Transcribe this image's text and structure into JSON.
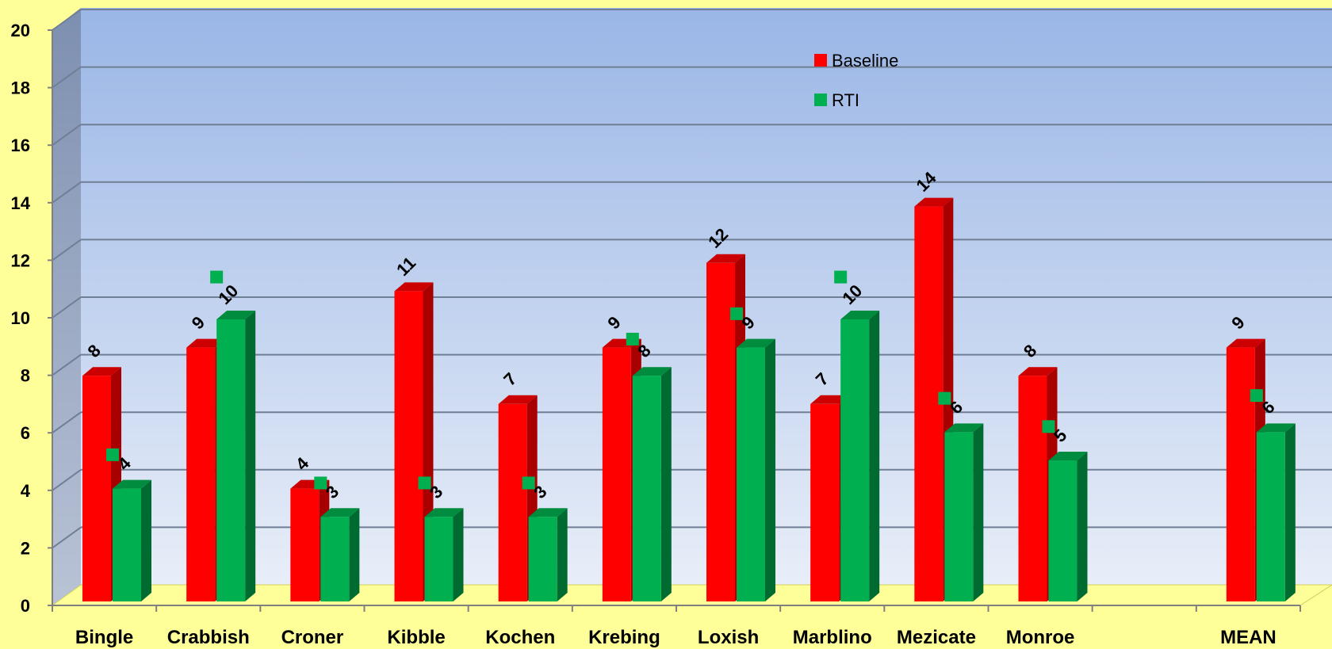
{
  "chart_data": {
    "type": "bar",
    "categories": [
      "Bingle",
      "Crabbish",
      "Croner",
      "Kibble",
      "Kochen",
      "Krebing",
      "Loxish",
      "Marblino",
      "Mezicate",
      "Monroe",
      "",
      "MEAN"
    ],
    "series": [
      {
        "name": "Baseline",
        "values": [
          8,
          9,
          4,
          11,
          7,
          9,
          12,
          7,
          14,
          8,
          null,
          9
        ],
        "color": "#ff0000",
        "side_color": "#a80000",
        "top_color": "#cc0000"
      },
      {
        "name": "RTI",
        "values": [
          4,
          10,
          3,
          3,
          3,
          8,
          9,
          10,
          6,
          5,
          null,
          6
        ],
        "color": "#00b050",
        "side_color": "#006b30",
        "top_color": "#008c3e"
      }
    ],
    "data_labels": {
      "Baseline": [
        "8",
        "9",
        "4",
        "11",
        "7",
        "9",
        "12",
        "7",
        "14",
        "8",
        "",
        "9"
      ],
      "RTI": [
        "4",
        "10",
        "3",
        "3",
        "3",
        "8",
        "9",
        "10",
        "6",
        "5",
        "",
        "6"
      ]
    },
    "markers": {
      "series": "RTI",
      "color": "#00b050",
      "values": [
        5.2,
        11.5,
        4.2,
        4.2,
        4.2,
        9.3,
        10.2,
        11.5,
        7.2,
        6.2,
        null,
        7.3
      ]
    },
    "ylim": [
      0,
      20
    ],
    "yticks": [
      "0",
      "2",
      "4",
      "6",
      "8",
      "10",
      "12",
      "14",
      "16",
      "18",
      "20"
    ],
    "grid": true,
    "legend": {
      "placement": "top-center",
      "entries": [
        "Baseline",
        "RTI"
      ]
    },
    "title": "",
    "xlabel": "",
    "ylabel": ""
  }
}
